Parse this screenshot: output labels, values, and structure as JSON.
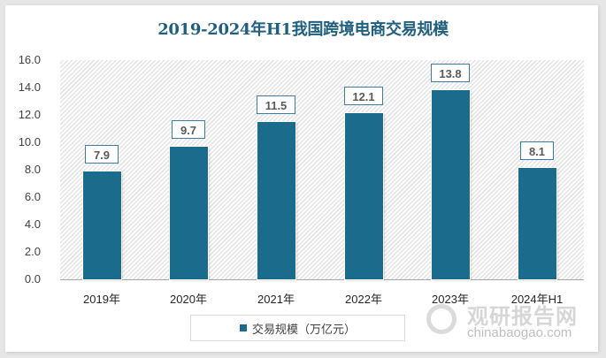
{
  "title": "2019-2024年H1我国跨境电商交易规模",
  "yaxis": {
    "ticks": [
      "16.0",
      "14.0",
      "12.0",
      "10.0",
      "8.0",
      "6.0",
      "4.0",
      "2.0",
      "0.0"
    ]
  },
  "bars": [
    {
      "category": "2019年",
      "value": 7.9,
      "label": "7.9"
    },
    {
      "category": "2020年",
      "value": 9.7,
      "label": "9.7"
    },
    {
      "category": "2021年",
      "value": 11.5,
      "label": "11.5"
    },
    {
      "category": "2022年",
      "value": 12.1,
      "label": "12.1"
    },
    {
      "category": "2023年",
      "value": 13.8,
      "label": "13.8"
    },
    {
      "category": "2024年H1",
      "value": 8.1,
      "label": "8.1"
    }
  ],
  "legend": {
    "label": "交易规模（万亿元）",
    "color": "#1b6b8c"
  },
  "watermark": {
    "cn": "观研报告网",
    "en": "chinabaogao.com"
  },
  "colors": {
    "bar": "#1b6b8c",
    "title": "#1f5f7f",
    "label_border": "#3a7d9c"
  },
  "chart_data": {
    "type": "bar",
    "title": "2019-2024年H1我国跨境电商交易规模",
    "categories": [
      "2019年",
      "2020年",
      "2021年",
      "2022年",
      "2023年",
      "2024年H1"
    ],
    "series": [
      {
        "name": "交易规模（万亿元）",
        "values": [
          7.9,
          9.7,
          11.5,
          12.1,
          13.8,
          8.1
        ]
      }
    ],
    "xlabel": "",
    "ylabel": "",
    "ylim": [
      0,
      16
    ],
    "yticks": [
      0,
      2,
      4,
      6,
      8,
      10,
      12,
      14,
      16
    ],
    "grid": false,
    "legend_position": "bottom",
    "data_labels": true
  }
}
